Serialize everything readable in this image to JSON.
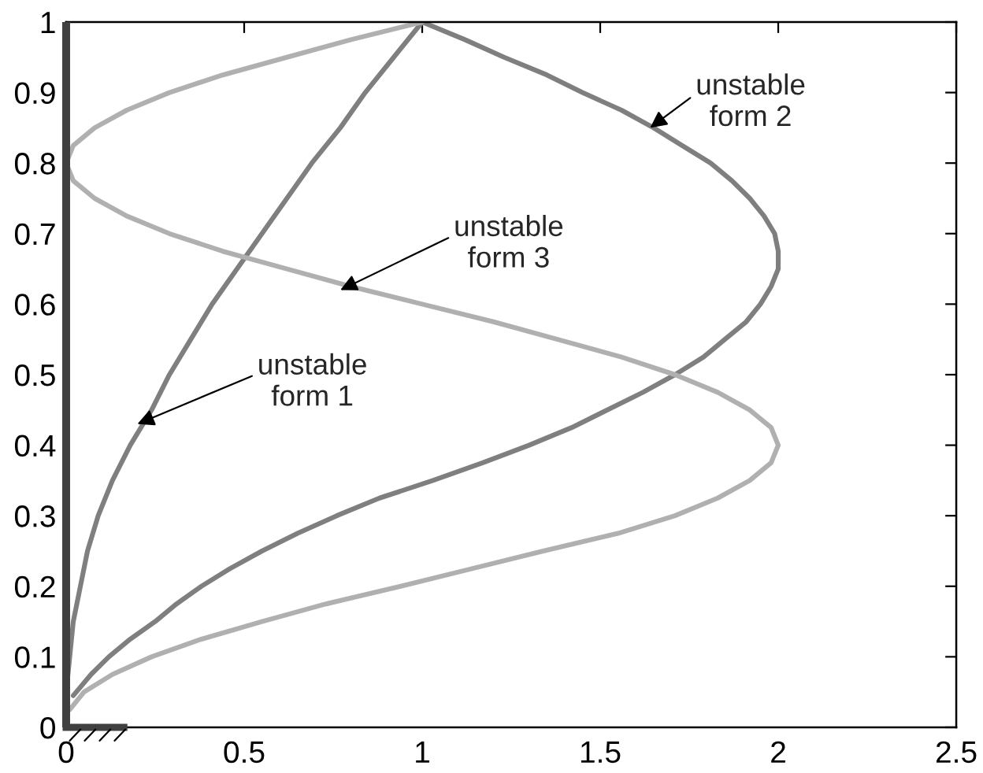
{
  "chart_data": {
    "type": "line",
    "xlim": [
      0,
      2.5
    ],
    "ylim": [
      0,
      1
    ],
    "xticks": [
      0,
      0.5,
      1,
      1.5,
      2,
      2.5
    ],
    "yticks": [
      0,
      0.1,
      0.2,
      0.3,
      0.4,
      0.5,
      0.6,
      0.7,
      0.8,
      0.9,
      1
    ],
    "ref_lines": [
      {
        "axis": "x",
        "value": 0,
        "color": "#404040"
      }
    ],
    "series": [
      {
        "color": "#7f7f7f",
        "x": [
          0,
          0.0,
          0.01,
          0.02,
          0.04,
          0.06,
          0.09,
          0.13,
          0.18,
          0.24,
          0.29,
          0.35,
          0.41,
          0.48,
          0.55,
          0.62,
          0.69,
          0.77,
          0.84,
          0.92,
          1.0
        ],
        "values": [
          0,
          0.05,
          0.1,
          0.15,
          0.2,
          0.25,
          0.3,
          0.35,
          0.4,
          0.45,
          0.5,
          0.55,
          0.6,
          0.65,
          0.7,
          0.75,
          0.8,
          0.85,
          0.9,
          0.95,
          1
        ]
      },
      {
        "color": "#7f7f7f",
        "x": [
          0.02,
          0.07,
          0.12,
          0.18,
          0.25,
          0.31,
          0.38,
          0.46,
          0.55,
          0.65,
          0.76,
          0.88,
          1.03,
          1.17,
          1.3,
          1.42,
          1.52,
          1.62,
          1.71,
          1.79,
          1.85,
          1.91,
          1.95,
          1.98,
          2.0,
          2.0,
          1.99,
          1.96,
          1.92,
          1.87,
          1.81,
          1.73,
          1.65,
          1.56,
          1.45,
          1.35,
          1.23,
          1.12,
          1.0
        ],
        "values": [
          0.045,
          0.075,
          0.1,
          0.125,
          0.15,
          0.175,
          0.2,
          0.225,
          0.25,
          0.275,
          0.3,
          0.325,
          0.35,
          0.375,
          0.4,
          0.425,
          0.45,
          0.475,
          0.5,
          0.525,
          0.55,
          0.575,
          0.6,
          0.625,
          0.65,
          0.675,
          0.7,
          0.725,
          0.75,
          0.775,
          0.8,
          0.825,
          0.85,
          0.875,
          0.9,
          0.925,
          0.95,
          0.975,
          1
        ]
      },
      {
        "color": "#b0b0b0",
        "x": [
          0.01,
          0.05,
          0.13,
          0.24,
          0.38,
          0.55,
          0.73,
          0.94,
          1.14,
          1.34,
          1.55,
          1.71,
          1.83,
          1.92,
          1.98,
          2.0,
          1.98,
          1.92,
          1.83,
          1.71,
          1.56,
          1.38,
          1.2,
          1.0,
          0.8,
          0.62,
          0.44,
          0.29,
          0.17,
          0.08,
          0.02,
          0.0,
          0.02,
          0.08,
          0.17,
          0.29,
          0.44,
          0.62,
          0.8,
          1.0
        ],
        "values": [
          0.025,
          0.05,
          0.075,
          0.1,
          0.125,
          0.15,
          0.175,
          0.2,
          0.225,
          0.25,
          0.275,
          0.3,
          0.325,
          0.35,
          0.375,
          0.4,
          0.425,
          0.45,
          0.475,
          0.5,
          0.525,
          0.55,
          0.575,
          0.6,
          0.625,
          0.65,
          0.675,
          0.7,
          0.725,
          0.75,
          0.775,
          0.8,
          0.825,
          0.85,
          0.875,
          0.9,
          0.925,
          0.95,
          0.975,
          1
        ]
      }
    ],
    "annotations": [
      {
        "text": "unstable\nform 2",
        "x": 1.64,
        "y": 0.85
      },
      {
        "text": "unstable\nform 3",
        "x": 0.77,
        "y": 0.62
      },
      {
        "text": "unstable\nform 1",
        "x": 0.2,
        "y": 0.43
      }
    ]
  }
}
